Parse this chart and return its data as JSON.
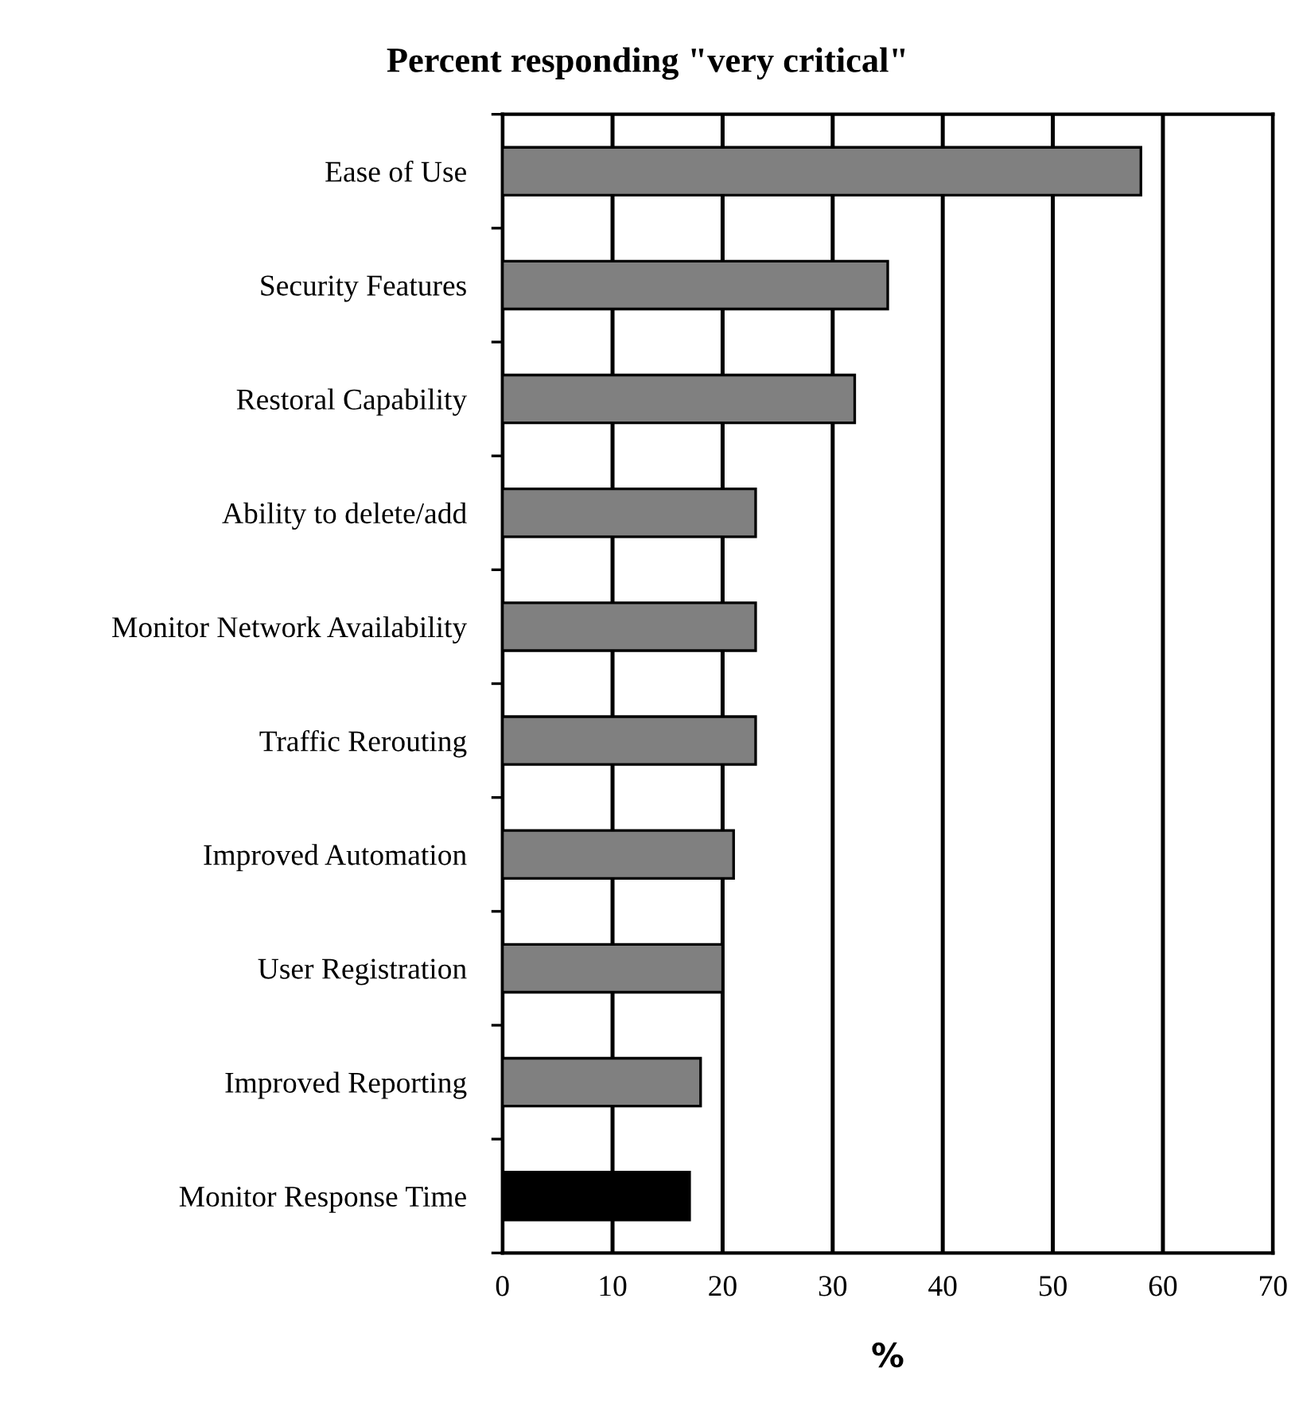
{
  "chart_data": {
    "type": "bar",
    "orientation": "horizontal",
    "title": "Percent responding \"very critical\"",
    "xlabel": "%",
    "categories": [
      "Ease of Use",
      "Security Features",
      "Restoral Capability",
      "Ability to delete/add",
      "Monitor Network Availability",
      "Traffic Rerouting",
      "Improved Automation",
      "User Registration",
      "Improved Reporting",
      "Monitor Response Time"
    ],
    "values": [
      58,
      35,
      32,
      23,
      23,
      23,
      21,
      20,
      18,
      17
    ],
    "colors": [
      "#808080",
      "#808080",
      "#808080",
      "#808080",
      "#808080",
      "#808080",
      "#808080",
      "#808080",
      "#808080",
      "#000000"
    ],
    "xlim": [
      0,
      70
    ],
    "xticks": [
      0,
      10,
      20,
      30,
      40,
      50,
      60,
      70
    ],
    "grid": "x",
    "legend": false
  }
}
